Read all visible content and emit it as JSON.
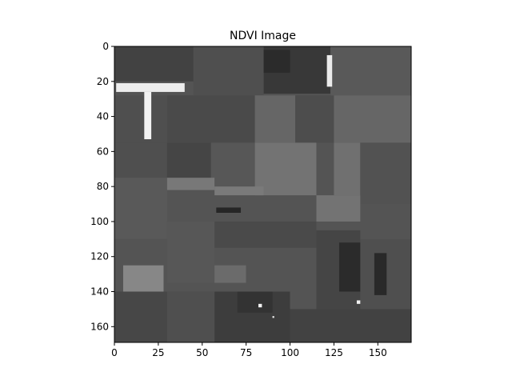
{
  "chart_data": {
    "type": "heatmap",
    "title": "NDVI Image",
    "xlabel": "",
    "ylabel": "",
    "colormap": "gray",
    "xlim": [
      0,
      169
    ],
    "ylim": [
      169,
      0
    ],
    "x_ticks": [
      0,
      25,
      50,
      75,
      100,
      125,
      150
    ],
    "y_ticks": [
      0,
      20,
      40,
      60,
      80,
      100,
      120,
      140,
      160
    ],
    "grid": false,
    "legend": "none",
    "background_gray": 0.33,
    "regions": [
      {
        "x": [
          0,
          45
        ],
        "y": [
          0,
          20
        ],
        "gray": 0.26
      },
      {
        "x": [
          45,
          85
        ],
        "y": [
          0,
          28
        ],
        "gray": 0.31
      },
      {
        "x": [
          85,
          123
        ],
        "y": [
          0,
          27
        ],
        "gray": 0.22
      },
      {
        "x": [
          123,
          169
        ],
        "y": [
          0,
          28
        ],
        "gray": 0.35
      },
      {
        "x": [
          0,
          30
        ],
        "y": [
          28,
          55
        ],
        "gray": 0.31
      },
      {
        "x": [
          30,
          80
        ],
        "y": [
          28,
          55
        ],
        "gray": 0.29
      },
      {
        "x": [
          80,
          103
        ],
        "y": [
          28,
          55
        ],
        "gray": 0.4
      },
      {
        "x": [
          103,
          125
        ],
        "y": [
          28,
          55
        ],
        "gray": 0.3
      },
      {
        "x": [
          125,
          169
        ],
        "y": [
          28,
          55
        ],
        "gray": 0.4
      },
      {
        "x": [
          0,
          30
        ],
        "y": [
          55,
          75
        ],
        "gray": 0.31
      },
      {
        "x": [
          30,
          55
        ],
        "y": [
          55,
          75
        ],
        "gray": 0.27
      },
      {
        "x": [
          55,
          80
        ],
        "y": [
          55,
          80
        ],
        "gray": 0.34
      },
      {
        "x": [
          80,
          115
        ],
        "y": [
          55,
          85
        ],
        "gray": 0.45
      },
      {
        "x": [
          125,
          140
        ],
        "y": [
          55,
          85
        ],
        "gray": 0.44
      },
      {
        "x": [
          140,
          169
        ],
        "y": [
          55,
          90
        ],
        "gray": 0.32
      },
      {
        "x": [
          0,
          30
        ],
        "y": [
          75,
          110
        ],
        "gray": 0.35
      },
      {
        "x": [
          30,
          57
        ],
        "y": [
          75,
          82
        ],
        "gray": 0.47
      },
      {
        "x": [
          57,
          85
        ],
        "y": [
          80,
          85
        ],
        "gray": 0.48
      },
      {
        "x": [
          115,
          140
        ],
        "y": [
          85,
          100
        ],
        "gray": 0.45
      },
      {
        "x": [
          0,
          30
        ],
        "y": [
          110,
          125
        ],
        "gray": 0.33
      },
      {
        "x": [
          30,
          57
        ],
        "y": [
          100,
          135
        ],
        "gray": 0.34
      },
      {
        "x": [
          57,
          115
        ],
        "y": [
          100,
          115
        ],
        "gray": 0.29
      },
      {
        "x": [
          115,
          140
        ],
        "y": [
          105,
          150
        ],
        "gray": 0.27
      },
      {
        "x": [
          140,
          169
        ],
        "y": [
          110,
          150
        ],
        "gray": 0.31
      },
      {
        "x": [
          5,
          28
        ],
        "y": [
          125,
          140
        ],
        "gray": 0.53
      },
      {
        "x": [
          57,
          75
        ],
        "y": [
          125,
          135
        ],
        "gray": 0.42
      },
      {
        "x": [
          75,
          115
        ],
        "y": [
          120,
          140
        ],
        "gray": 0.33
      },
      {
        "x": [
          0,
          30
        ],
        "y": [
          140,
          169
        ],
        "gray": 0.28
      },
      {
        "x": [
          30,
          57
        ],
        "y": [
          140,
          169
        ],
        "gray": 0.31
      },
      {
        "x": [
          57,
          100
        ],
        "y": [
          140,
          169
        ],
        "gray": 0.24
      },
      {
        "x": [
          100,
          169
        ],
        "y": [
          150,
          169
        ],
        "gray": 0.26
      },
      {
        "x": [
          128,
          140
        ],
        "y": [
          112,
          140
        ],
        "gray": 0.17
      },
      {
        "x": [
          148,
          155
        ],
        "y": [
          118,
          142
        ],
        "gray": 0.16
      },
      {
        "x": [
          70,
          90
        ],
        "y": [
          140,
          152
        ],
        "gray": 0.2
      },
      {
        "x": [
          85,
          100
        ],
        "y": [
          2,
          15
        ],
        "gray": 0.17
      }
    ],
    "highlights": [
      {
        "x": [
          1,
          40
        ],
        "y": [
          21,
          26
        ],
        "gray": 0.93
      },
      {
        "x": [
          17,
          21
        ],
        "y": [
          26,
          53
        ],
        "gray": 0.95
      },
      {
        "x": [
          121,
          124
        ],
        "y": [
          5,
          23
        ],
        "gray": 0.92
      },
      {
        "x": [
          58,
          72
        ],
        "y": [
          92,
          95
        ],
        "gray": 0.15
      },
      {
        "x": [
          82,
          84
        ],
        "y": [
          147,
          149
        ],
        "gray": 0.95
      },
      {
        "x": [
          138,
          140
        ],
        "y": [
          145,
          147
        ],
        "gray": 0.95
      },
      {
        "x": [
          90,
          91
        ],
        "y": [
          154,
          155
        ],
        "gray": 0.95
      }
    ]
  }
}
